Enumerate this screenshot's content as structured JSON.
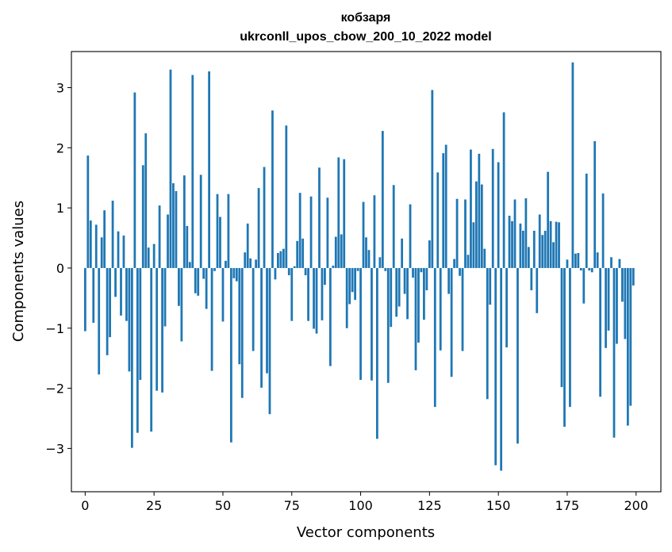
{
  "chart_data": {
    "type": "bar",
    "title": "кобзаря",
    "subtitle": "ukrconll_upos_cbow_200_10_2022 model",
    "xlabel": "Vector components",
    "ylabel": "Components values",
    "xlim": [
      -5,
      209
    ],
    "ylim": [
      -3.72,
      3.6
    ],
    "xticks": [
      0,
      25,
      50,
      75,
      100,
      125,
      150,
      175,
      200
    ],
    "yticks": [
      -3,
      -2,
      -1,
      0,
      1,
      2,
      3
    ],
    "xtick_labels": [
      "0",
      "25",
      "50",
      "75",
      "100",
      "125",
      "150",
      "175",
      "200"
    ],
    "ytick_labels": [
      "−3",
      "−2",
      "−1",
      "0",
      "1",
      "2",
      "3"
    ],
    "grid": false,
    "bar_color": "#1f77b4",
    "values": [
      -1.05,
      1.87,
      0.79,
      -0.91,
      0.72,
      -1.77,
      0.51,
      0.96,
      -1.45,
      -1.15,
      1.12,
      -0.48,
      0.61,
      -0.79,
      0.54,
      -0.88,
      -1.72,
      -2.99,
      2.92,
      -2.74,
      -1.86,
      1.71,
      2.24,
      0.34,
      -2.72,
      0.4,
      -2.04,
      1.04,
      -2.07,
      -0.97,
      0.89,
      3.3,
      1.41,
      1.28,
      -0.63,
      -1.22,
      1.54,
      0.7,
      0.1,
      3.21,
      -0.42,
      -0.46,
      1.55,
      -0.18,
      -0.68,
      3.27,
      -1.71,
      -0.05,
      1.23,
      0.85,
      -0.89,
      0.12,
      1.23,
      -2.9,
      -0.17,
      -0.22,
      -1.6,
      -2.16,
      0.26,
      0.74,
      0.16,
      -1.38,
      0.14,
      1.33,
      -1.99,
      1.68,
      -1.75,
      -2.43,
      2.62,
      -0.19,
      0.25,
      0.28,
      0.32,
      2.37,
      -0.12,
      -0.88,
      0.03,
      0.45,
      1.25,
      0.49,
      -0.12,
      -0.88,
      1.19,
      -1.01,
      -1.09,
      1.67,
      -0.87,
      -0.28,
      1.17,
      -1.63,
      0.04,
      0.52,
      1.84,
      0.56,
      1.81,
      -1.0,
      -0.6,
      -0.4,
      -0.53,
      -0.05,
      -1.86,
      1.1,
      0.51,
      0.3,
      -1.87,
      1.21,
      -2.84,
      0.18,
      2.28,
      -0.05,
      -1.91,
      -0.98,
      1.38,
      -0.81,
      -0.64,
      0.49,
      -0.43,
      -0.85,
      1.06,
      -0.16,
      -1.7,
      -1.24,
      -0.07,
      -0.86,
      -0.37,
      0.46,
      2.96,
      -2.31,
      1.59,
      -1.37,
      1.91,
      2.05,
      -0.43,
      -1.81,
      0.15,
      1.15,
      -0.13,
      -1.38,
      1.14,
      0.22,
      1.97,
      0.76,
      1.44,
      1.9,
      1.39,
      0.32,
      -2.18,
      -0.61,
      1.98,
      -3.28,
      1.76,
      -3.37,
      2.59,
      -1.32,
      0.87,
      0.78,
      1.14,
      -2.92,
      0.74,
      0.62,
      1.16,
      0.35,
      -0.37,
      0.62,
      -0.75,
      0.89,
      0.55,
      0.62,
      1.6,
      0.78,
      0.43,
      0.77,
      0.76,
      -1.98,
      -2.64,
      0.14,
      -2.31,
      3.42,
      0.24,
      0.25,
      -0.04,
      -0.59,
      1.57,
      -0.04,
      -0.07,
      2.11,
      0.26,
      -2.14,
      1.24,
      -1.33,
      -1.04,
      0.18,
      -2.82,
      -1.26,
      0.15,
      -0.56,
      -1.18,
      -2.62,
      -2.29,
      -0.29
    ]
  }
}
